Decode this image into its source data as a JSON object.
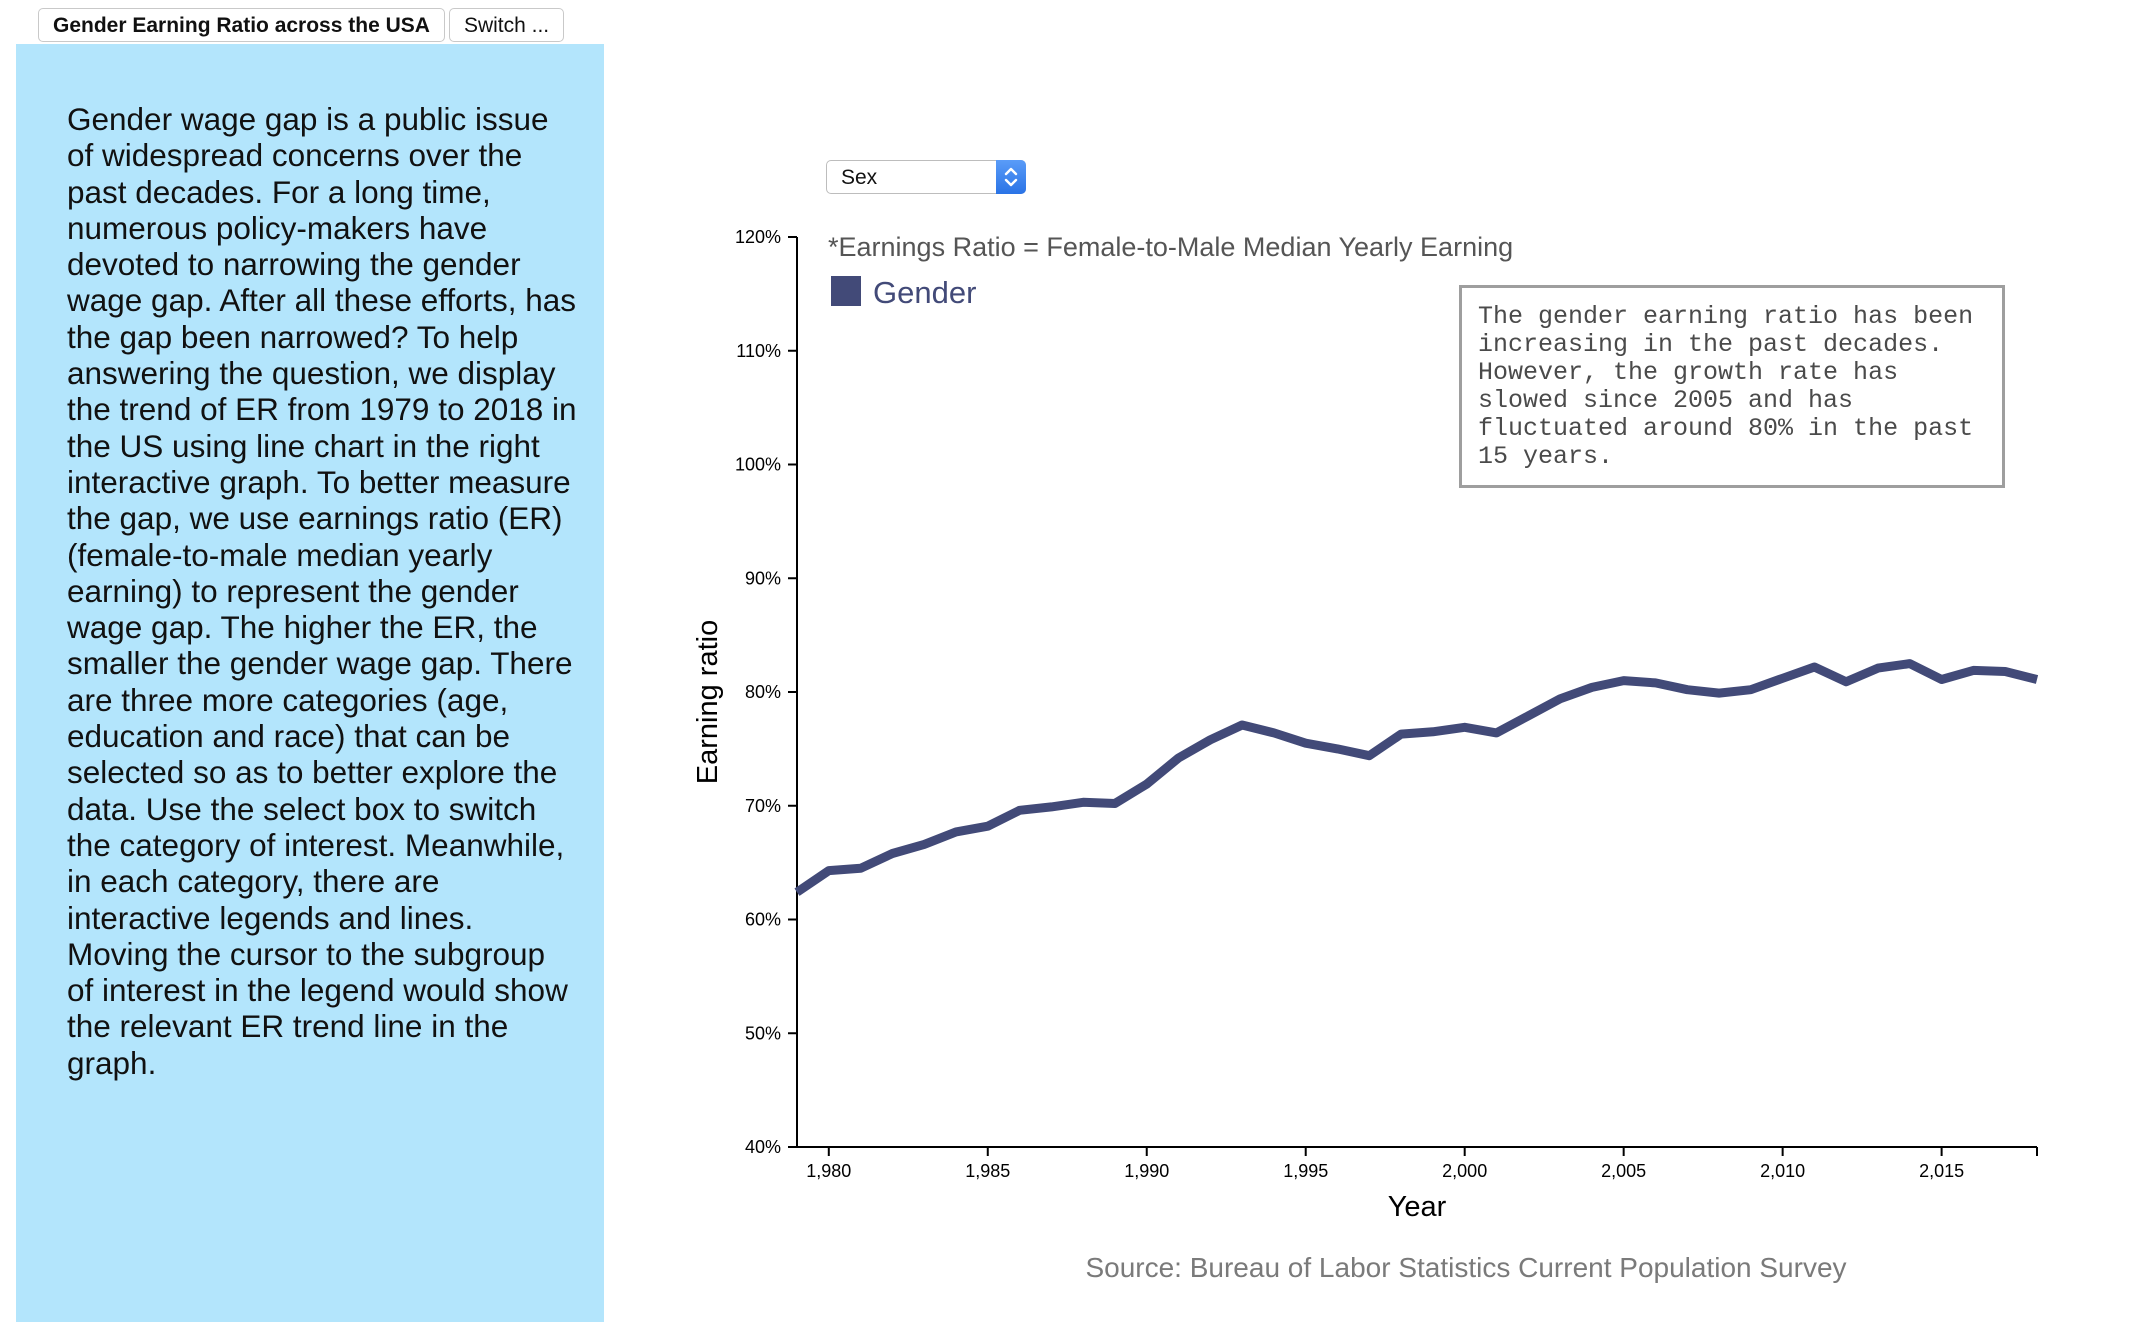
{
  "tabs": [
    {
      "label": "Gender Earning Ratio across the USA"
    },
    {
      "label": "Switch ..."
    }
  ],
  "sidebar": {
    "text": "Gender wage gap is a public issue of widespread concerns over the past decades. For a long time, numerous policy-makers have devoted to narrowing the gender wage gap. After all these efforts, has the gap been narrowed? To help answering the question, we display the trend of ER from 1979 to 2018 in the US using line chart in the right interactive graph. To better measure the gap, we use earnings ratio (ER) (female-to-male median yearly earning) to represent the gender wage gap. The higher the ER, the smaller the gender wage gap. There are three more categories (age, education and race) that can be selected so as to better explore the data. Use the select box to switch the category of interest. Meanwhile, in each category, there are interactive legends and lines. Moving the cursor to the subgroup of interest in the legend would show the relevant ER trend line in the graph."
  },
  "select": {
    "value": "Sex"
  },
  "note": {
    "text": "The gender earning ratio has been increasing in the past decades. However, the growth rate has slowed since 2005 and has fluctuated around 80% in the past 15 years."
  },
  "chart_data": {
    "type": "line",
    "subtitle": "*Earnings Ratio = Female-to-Male Median Yearly Earning",
    "xlabel": "Year",
    "ylabel": "Earning ratio",
    "source": "Source: Bureau of Labor Statistics Current Population Survey",
    "xlim": [
      1979,
      2018
    ],
    "ylim": [
      40,
      120
    ],
    "x_ticks": [
      1980,
      1985,
      1990,
      1995,
      2000,
      2005,
      2010,
      2015
    ],
    "x_tick_labels": [
      "1,980",
      "1,985",
      "1,990",
      "1,995",
      "2,000",
      "2,005",
      "2,010",
      "2,015"
    ],
    "y_ticks": [
      40,
      50,
      60,
      70,
      80,
      90,
      100,
      110,
      120
    ],
    "y_tick_labels": [
      "40%",
      "50%",
      "60%",
      "70%",
      "80%",
      "90%",
      "100%",
      "110%",
      "120%"
    ],
    "grid": false,
    "legend_position": "top-left",
    "series": [
      {
        "name": "Gender",
        "color": "#424a78",
        "x": [
          1979,
          1980,
          1981,
          1982,
          1983,
          1984,
          1985,
          1986,
          1987,
          1988,
          1989,
          1990,
          1991,
          1992,
          1993,
          1994,
          1995,
          1996,
          1997,
          1998,
          1999,
          2000,
          2001,
          2002,
          2003,
          2004,
          2005,
          2006,
          2007,
          2008,
          2009,
          2010,
          2011,
          2012,
          2013,
          2014,
          2015,
          2016,
          2017,
          2018
        ],
        "values": [
          62.4,
          64.3,
          64.5,
          65.8,
          66.6,
          67.7,
          68.2,
          69.6,
          69.9,
          70.3,
          70.2,
          71.9,
          74.2,
          75.8,
          77.1,
          76.4,
          75.5,
          75.0,
          74.4,
          76.3,
          76.5,
          76.9,
          76.4,
          77.9,
          79.4,
          80.4,
          81.0,
          80.8,
          80.2,
          79.9,
          80.2,
          81.2,
          82.2,
          80.9,
          82.1,
          82.5,
          81.1,
          81.9,
          81.8,
          81.1
        ]
      }
    ]
  }
}
